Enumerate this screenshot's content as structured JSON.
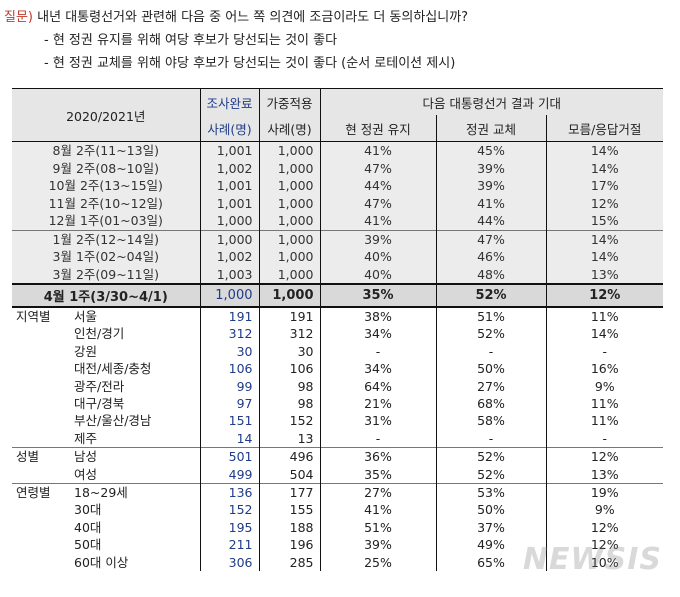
{
  "question": {
    "label": "질문)",
    "line1": "내년 대통령선거와 관련해 다음 중 어느 쪽 의견에 조금이라도 더 동의하십니까?",
    "line2": "- 현 정권 유지를 위해 여당 후보가 당선되는 것이 좋다",
    "line3": "- 현 정권 교체를 위해 야당 후보가 당선되는 것이 좋다 (순서 로테이션 제시)"
  },
  "header": {
    "period": "2020/2021년",
    "n_complete_1": "조사완료",
    "n_complete_2": "사례(명)",
    "n_weighted_1": "가중적용",
    "n_weighted_2": "사례(명)",
    "group_title": "다음 대통령선거 결과 기대",
    "col_keep": "현 정권 유지",
    "col_change": "정권 교체",
    "col_dk": "모름/응답거절"
  },
  "trend": [
    {
      "label": "8월 2주(11~13일)",
      "n1": "1,001",
      "n2": "1,000",
      "keep": "41%",
      "change": "45%",
      "dk": "14%"
    },
    {
      "label": "9월 2주(08~10일)",
      "n1": "1,002",
      "n2": "1,000",
      "keep": "47%",
      "change": "39%",
      "dk": "14%"
    },
    {
      "label": "10월 2주(13~15일)",
      "n1": "1,001",
      "n2": "1,000",
      "keep": "44%",
      "change": "39%",
      "dk": "17%"
    },
    {
      "label": "11월 2주(10~12일)",
      "n1": "1,001",
      "n2": "1,000",
      "keep": "47%",
      "change": "41%",
      "dk": "12%"
    },
    {
      "label": "12월 1주(01~03일)",
      "n1": "1,000",
      "n2": "1,000",
      "keep": "41%",
      "change": "44%",
      "dk": "15%"
    },
    {
      "label": "1월 2주(12~14일)",
      "n1": "1,000",
      "n2": "1,000",
      "keep": "39%",
      "change": "47%",
      "dk": "14%"
    },
    {
      "label": "3월 1주(02~04일)",
      "n1": "1,002",
      "n2": "1,000",
      "keep": "40%",
      "change": "46%",
      "dk": "14%"
    },
    {
      "label": "3월 2주(09~11일)",
      "n1": "1,003",
      "n2": "1,000",
      "keep": "40%",
      "change": "48%",
      "dk": "13%"
    }
  ],
  "current": {
    "label": "4월 1주(3/30~4/1)",
    "n1": "1,000",
    "n2": "1,000",
    "keep": "35%",
    "change": "52%",
    "dk": "12%"
  },
  "groups": [
    {
      "group": "지역별",
      "rows": [
        {
          "label": "서울",
          "n1": "191",
          "n2": "191",
          "keep": "38%",
          "change": "51%",
          "dk": "11%"
        },
        {
          "label": "인천/경기",
          "n1": "312",
          "n2": "312",
          "keep": "34%",
          "change": "52%",
          "dk": "14%"
        },
        {
          "label": "강원",
          "n1": "30",
          "n2": "30",
          "keep": "-",
          "change": "-",
          "dk": "-"
        },
        {
          "label": "대전/세종/충청",
          "n1": "106",
          "n2": "106",
          "keep": "34%",
          "change": "50%",
          "dk": "16%"
        },
        {
          "label": "광주/전라",
          "n1": "99",
          "n2": "98",
          "keep": "64%",
          "change": "27%",
          "dk": "9%"
        },
        {
          "label": "대구/경북",
          "n1": "97",
          "n2": "98",
          "keep": "21%",
          "change": "68%",
          "dk": "11%"
        },
        {
          "label": "부산/울산/경남",
          "n1": "151",
          "n2": "152",
          "keep": "31%",
          "change": "58%",
          "dk": "11%"
        },
        {
          "label": "제주",
          "n1": "14",
          "n2": "13",
          "keep": "-",
          "change": "-",
          "dk": "-"
        }
      ]
    },
    {
      "group": "성별",
      "rows": [
        {
          "label": "남성",
          "n1": "501",
          "n2": "496",
          "keep": "36%",
          "change": "52%",
          "dk": "12%"
        },
        {
          "label": "여성",
          "n1": "499",
          "n2": "504",
          "keep": "35%",
          "change": "52%",
          "dk": "13%"
        }
      ]
    },
    {
      "group": "연령별",
      "rows": [
        {
          "label": "18~29세",
          "n1": "136",
          "n2": "177",
          "keep": "27%",
          "change": "53%",
          "dk": "19%"
        },
        {
          "label": "30대",
          "n1": "152",
          "n2": "155",
          "keep": "41%",
          "change": "50%",
          "dk": "9%"
        },
        {
          "label": "40대",
          "n1": "195",
          "n2": "188",
          "keep": "51%",
          "change": "37%",
          "dk": "12%"
        },
        {
          "label": "50대",
          "n1": "211",
          "n2": "196",
          "keep": "39%",
          "change": "49%",
          "dk": "12%"
        },
        {
          "label": "60대 이상",
          "n1": "306",
          "n2": "285",
          "keep": "25%",
          "change": "65%",
          "dk": "10%"
        }
      ]
    }
  ],
  "watermark": "NEWSIS"
}
